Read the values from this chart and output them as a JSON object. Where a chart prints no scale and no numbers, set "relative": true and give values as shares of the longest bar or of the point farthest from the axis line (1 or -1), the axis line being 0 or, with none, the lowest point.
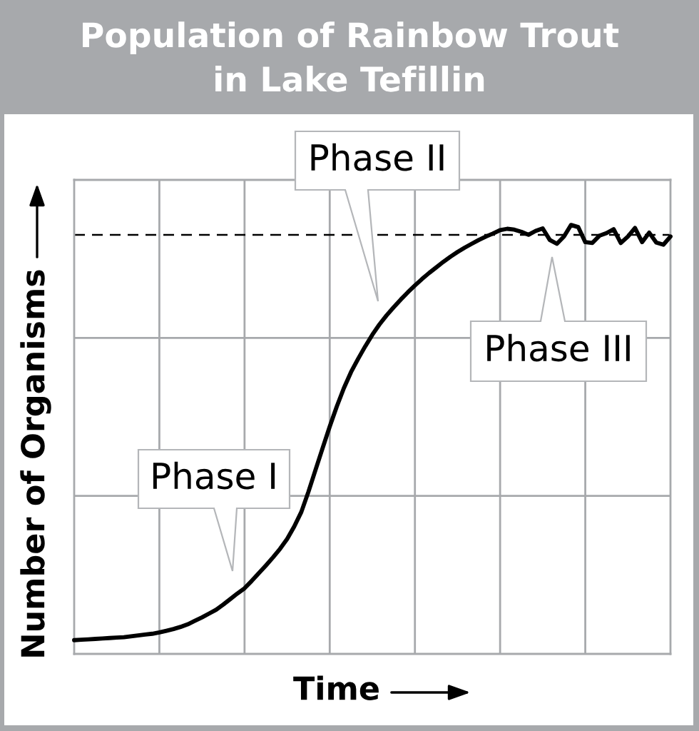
{
  "chart_data": {
    "type": "line",
    "title": "Population of Rainbow Trout\nin Lake Tefillin",
    "xlabel": "Time",
    "ylabel": "Number of Organisms",
    "relative": true,
    "grid": true,
    "categories": [
      null,
      null,
      null,
      null,
      null,
      null,
      null,
      null,
      null,
      null,
      null,
      null,
      null,
      null,
      null,
      null,
      null,
      null,
      null,
      null,
      null,
      null,
      null,
      null,
      null,
      null,
      null,
      null,
      null,
      null,
      null,
      null,
      null,
      null,
      null,
      null,
      null,
      null,
      null,
      null,
      null,
      null,
      null,
      null,
      null,
      null,
      null,
      null,
      null,
      null,
      null,
      null,
      null,
      null,
      null,
      null,
      null,
      null,
      null,
      null,
      null,
      null,
      null,
      null,
      null,
      null,
      null,
      null,
      null,
      null,
      null,
      null,
      null,
      null,
      null,
      null,
      null,
      null,
      null,
      null,
      null,
      null,
      null,
      null,
      null
    ],
    "series": [
      {
        "color": "#000000",
        "values": [
          0.032,
          0.033,
          0.034,
          0.035,
          0.036,
          0.037,
          0.038,
          0.039,
          0.041,
          0.043,
          0.045,
          0.047,
          0.05,
          0.054,
          0.058,
          0.063,
          0.069,
          0.077,
          0.085,
          0.094,
          0.103,
          0.115,
          0.128,
          0.141,
          0.153,
          0.17,
          0.188,
          0.206,
          0.225,
          0.245,
          0.268,
          0.297,
          0.331,
          0.378,
          0.429,
          0.48,
          0.53,
          0.577,
          0.62,
          0.657,
          0.688,
          0.717,
          0.744,
          0.768,
          0.789,
          0.808,
          0.826,
          0.843,
          0.859,
          0.874,
          0.888,
          0.901,
          0.914,
          0.926,
          0.937,
          0.947,
          0.956,
          0.965,
          0.973,
          0.98,
          0.988,
          0.991,
          0.989,
          0.984,
          0.977,
          0.986,
          0.992,
          0.965,
          0.956,
          0.973,
          1.0,
          0.995,
          0.96,
          0.958,
          0.975,
          0.981,
          0.99,
          0.958,
          0.973,
          0.993,
          0.96,
          0.982,
          0.959,
          0.954,
          0.973
        ]
      }
    ],
    "ref_lines": [
      {
        "axis": "y",
        "value": 0.977,
        "color": "#000000",
        "line_style": "dashed"
      }
    ],
    "annotations": [
      "Phase I",
      "Phase II",
      "Phase III"
    ]
  }
}
